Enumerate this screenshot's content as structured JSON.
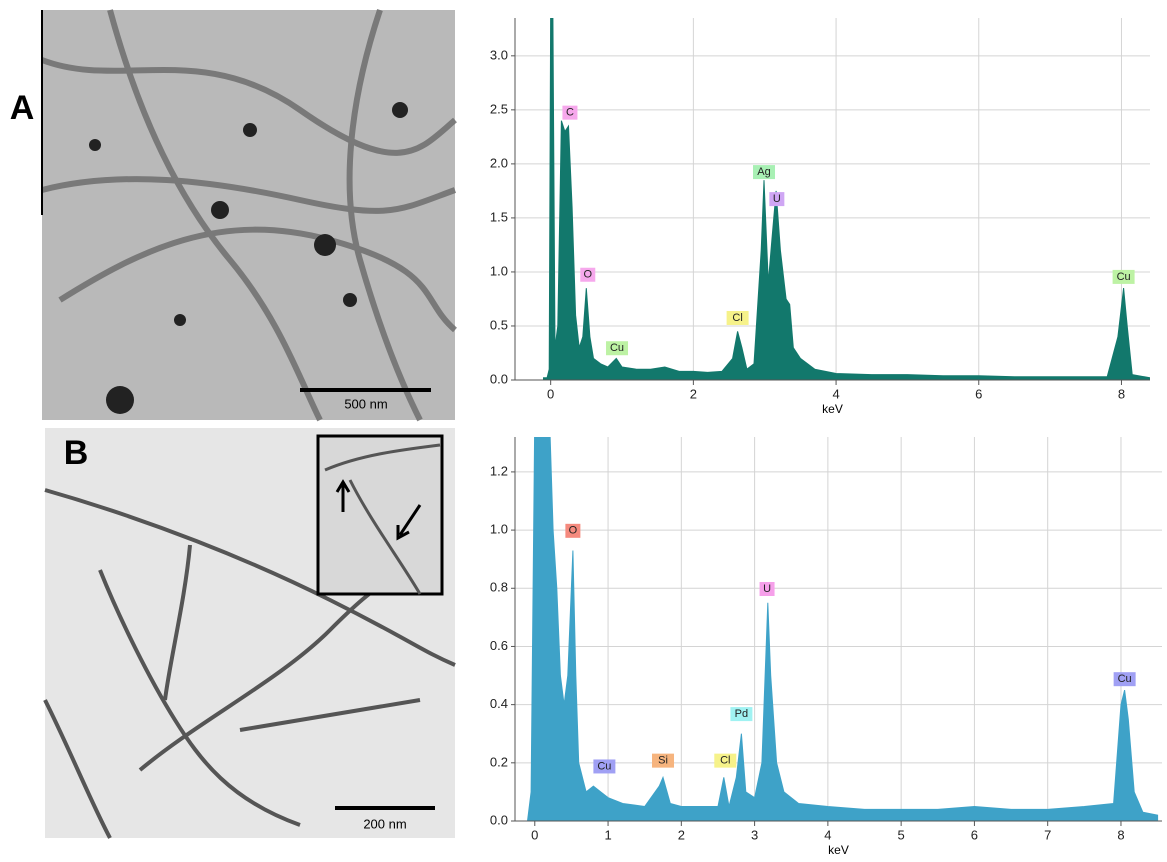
{
  "panels": [
    {
      "label": "A",
      "scale_bar": "500 nm"
    },
    {
      "label": "B",
      "scale_bar": "200 nm"
    }
  ],
  "chart_data": [
    {
      "type": "area",
      "x_label": "keV",
      "color": "#12786c",
      "grid": true,
      "xlim": [
        -0.5,
        8.4
      ],
      "ylim": [
        0,
        3.35
      ],
      "xticks": [
        0,
        2,
        4,
        6,
        8
      ],
      "yticks": [
        {
          "value": 0,
          "label": "0.0"
        },
        {
          "value": 0.5,
          "label": "0.5"
        },
        {
          "value": 1,
          "label": "1.0"
        },
        {
          "value": 1.5,
          "label": "1.5"
        },
        {
          "value": 2,
          "label": "2.0"
        },
        {
          "value": 2.5,
          "label": "2.5"
        },
        {
          "value": 3,
          "label": "3.0"
        }
      ],
      "x": [
        -0.1,
        -0.05,
        -0.02,
        0,
        0.03,
        0.06,
        0.1,
        0.15,
        0.2,
        0.25,
        0.3,
        0.35,
        0.4,
        0.45,
        0.5,
        0.55,
        0.6,
        0.7,
        0.8,
        0.92,
        1.0,
        1.2,
        1.4,
        1.6,
        1.8,
        2.0,
        2.2,
        2.4,
        2.55,
        2.62,
        2.68,
        2.75,
        2.85,
        2.95,
        2.99,
        3.05,
        3.1,
        3.16,
        3.22,
        3.3,
        3.35,
        3.4,
        3.5,
        3.7,
        4.0,
        4.5,
        5.0,
        5.5,
        6.0,
        6.5,
        7.0,
        7.5,
        7.8,
        7.95,
        8.03,
        8.08,
        8.15,
        8.4
      ],
      "values": [
        0.02,
        0.02,
        0.1,
        3.5,
        3.5,
        0.3,
        0.5,
        2.4,
        2.3,
        2.35,
        1.6,
        0.6,
        0.3,
        0.4,
        0.85,
        0.4,
        0.2,
        0.15,
        0.12,
        0.2,
        0.12,
        0.1,
        0.1,
        0.12,
        0.08,
        0.08,
        0.07,
        0.08,
        0.2,
        0.45,
        0.3,
        0.1,
        0.15,
        1.2,
        1.85,
        0.9,
        1.3,
        1.75,
        1.2,
        0.75,
        0.7,
        0.3,
        0.2,
        0.1,
        0.06,
        0.05,
        0.05,
        0.04,
        0.04,
        0.03,
        0.03,
        0.03,
        0.03,
        0.4,
        0.85,
        0.5,
        0.05,
        0.02
      ],
      "peak_labels": [
        {
          "text": "C",
          "x": 0.27,
          "y": 2.4,
          "color": "#f6a8ec"
        },
        {
          "text": "O",
          "x": 0.52,
          "y": 0.9,
          "color": "#f6a8ec"
        },
        {
          "text": "Cu",
          "x": 0.93,
          "y": 0.22,
          "color": "#bdf2a4"
        },
        {
          "text": "Cl",
          "x": 2.62,
          "y": 0.5,
          "color": "#f6f28a"
        },
        {
          "text": "Ag",
          "x": 2.99,
          "y": 1.85,
          "color": "#a8f0b4"
        },
        {
          "text": "U",
          "x": 3.17,
          "y": 1.6,
          "color": "#cfa6f4"
        },
        {
          "text": "Cu",
          "x": 8.03,
          "y": 0.88,
          "color": "#bdf2a4"
        }
      ]
    },
    {
      "type": "area",
      "x_label": "keV",
      "color": "#3ea2c8",
      "grid": true,
      "xlim": [
        -0.27,
        8.56
      ],
      "ylim": [
        0,
        1.32
      ],
      "xticks": [
        0,
        1,
        2,
        3,
        4,
        5,
        6,
        7,
        8
      ],
      "yticks": [
        {
          "value": 0,
          "label": "0.0"
        },
        {
          "value": 0.2,
          "label": "0.2"
        },
        {
          "value": 0.4,
          "label": "0.4"
        },
        {
          "value": 0.6,
          "label": "0.6"
        },
        {
          "value": 0.8,
          "label": "0.8"
        },
        {
          "value": 1,
          "label": "1.0"
        },
        {
          "value": 1.2,
          "label": "1.2"
        }
      ],
      "x": [
        -0.1,
        -0.05,
        0,
        0.1,
        0.2,
        0.25,
        0.3,
        0.35,
        0.4,
        0.45,
        0.52,
        0.56,
        0.6,
        0.7,
        0.8,
        0.9,
        1.0,
        1.2,
        1.5,
        1.7,
        1.75,
        1.85,
        2.0,
        2.3,
        2.5,
        2.58,
        2.65,
        2.75,
        2.82,
        2.88,
        3.0,
        3.1,
        3.18,
        3.22,
        3.3,
        3.4,
        3.6,
        4.0,
        4.5,
        5.0,
        5.5,
        6.0,
        6.5,
        7.0,
        7.5,
        7.9,
        8.0,
        8.05,
        8.1,
        8.18,
        8.3,
        8.5
      ],
      "values": [
        0,
        0.1,
        1.4,
        1.4,
        1.4,
        1.0,
        0.8,
        0.5,
        0.4,
        0.5,
        0.93,
        0.5,
        0.2,
        0.1,
        0.12,
        0.1,
        0.08,
        0.06,
        0.05,
        0.12,
        0.15,
        0.06,
        0.05,
        0.05,
        0.05,
        0.15,
        0.05,
        0.15,
        0.3,
        0.1,
        0.08,
        0.2,
        0.75,
        0.5,
        0.2,
        0.1,
        0.06,
        0.05,
        0.04,
        0.04,
        0.04,
        0.05,
        0.04,
        0.04,
        0.05,
        0.06,
        0.4,
        0.45,
        0.35,
        0.1,
        0.03,
        0.02
      ],
      "peak_labels": [
        {
          "text": "O",
          "x": 0.52,
          "y": 0.97,
          "color": "#f58a7e"
        },
        {
          "text": "Cu",
          "x": 0.95,
          "y": 0.16,
          "color": "#a0a0f4"
        },
        {
          "text": "Si",
          "x": 1.75,
          "y": 0.18,
          "color": "#f6b47e"
        },
        {
          "text": "Cl",
          "x": 2.6,
          "y": 0.18,
          "color": "#f6f28a"
        },
        {
          "text": "Pd",
          "x": 2.82,
          "y": 0.34,
          "color": "#a0f2f2"
        },
        {
          "text": "U",
          "x": 3.17,
          "y": 0.77,
          "color": "#f6a0ea"
        },
        {
          "text": "Cu",
          "x": 8.05,
          "y": 0.46,
          "color": "#a0a0f4"
        }
      ]
    }
  ]
}
